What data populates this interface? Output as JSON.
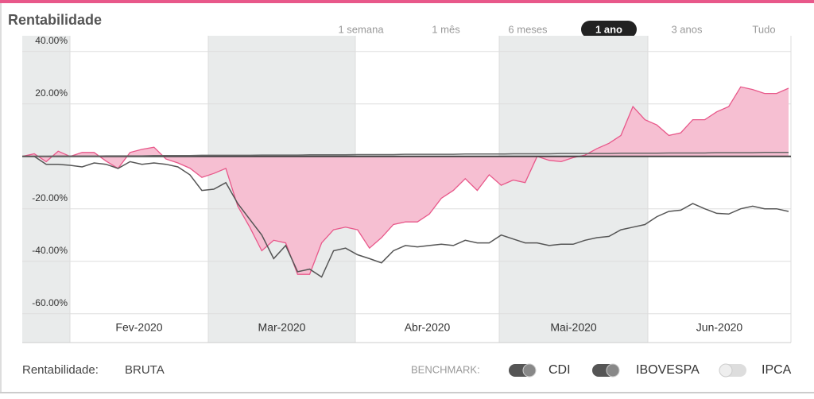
{
  "ui": {
    "periods": [
      "1 semana",
      "1 mês",
      "6 meses",
      "1 ano",
      "3 anos",
      "Tudo"
    ],
    "selected_period": 3,
    "footer": {
      "mode_label": "Rentabilidade:",
      "mode": "BRUTA",
      "benchmark_label": "BENCHMARK:",
      "hidden_benchmarks": [
        "IPCA"
      ]
    }
  },
  "chart_data": {
    "type": "line",
    "title": "Rentabilidade",
    "month_labels": [
      "Fev-2020",
      "Mar-2020",
      "Abr-2020",
      "Mai-2020",
      "Jun-2020"
    ],
    "ylim": [
      -71,
      46
    ],
    "yticks": [
      {
        "value": 40,
        "label": "40.00%"
      },
      {
        "value": 20,
        "label": "20.00%"
      },
      {
        "value": -20,
        "label": "-20.00%"
      },
      {
        "value": -40,
        "label": "-40.00%"
      },
      {
        "value": -60,
        "label": "-60.00%"
      }
    ],
    "grid": true,
    "series": [
      {
        "color": "#e8588a",
        "fill": "#f6bfd2",
        "area": true,
        "values": [
          0,
          1,
          -2,
          2,
          0,
          1.5,
          1.5,
          -1.8,
          -4.6,
          1.5,
          2.7,
          3.5,
          -1,
          -2.5,
          -4.5,
          -8,
          -6.5,
          -4.6,
          -19,
          -27,
          -36,
          -32,
          -33,
          -45,
          -45,
          -33,
          -28,
          -27,
          -28,
          -35,
          -31,
          -26,
          -25,
          -25,
          -22,
          -16,
          -13,
          -8.5,
          -13,
          -7,
          -11,
          -9,
          -10,
          0,
          -1.5,
          -2,
          -0.5,
          0.5,
          3,
          5,
          8,
          19,
          14,
          12,
          8,
          9,
          14,
          14,
          17,
          19,
          26.5,
          25.5,
          24,
          24,
          26
        ]
      },
      {
        "name": "CDI",
        "color": "#666666",
        "visible": true,
        "values": [
          0,
          0,
          0,
          0.1,
          0.1,
          0.1,
          0.1,
          0.2,
          0.2,
          0.2,
          0.2,
          0.3,
          0.3,
          0.3,
          0.3,
          0.4,
          0.4,
          0.4,
          0.4,
          0.4,
          0.5,
          0.5,
          0.5,
          0.5,
          0.6,
          0.6,
          0.6,
          0.6,
          0.7,
          0.7,
          0.7,
          0.7,
          0.8,
          0.8,
          0.8,
          0.8,
          0.8,
          0.9,
          0.9,
          0.9,
          0.9,
          1.0,
          1.0,
          1.0,
          1.0,
          1.1,
          1.1,
          1.1,
          1.1,
          1.1,
          1.2,
          1.2,
          1.2,
          1.2,
          1.3,
          1.3,
          1.3,
          1.3,
          1.4,
          1.4,
          1.4,
          1.4,
          1.5,
          1.5,
          1.5
        ]
      },
      {
        "name": "IBOVESPA",
        "color": "#555555",
        "visible": true,
        "values": [
          0,
          0,
          -3,
          -3,
          -3.4,
          -4,
          -2.5,
          -3,
          -4.6,
          -2,
          -3,
          -2.5,
          -3,
          -4,
          -7,
          -13,
          -12.5,
          -10,
          -18,
          -24,
          -30,
          -39,
          -34,
          -44,
          -43,
          -46,
          -36,
          -35,
          -37.5,
          -39,
          -40.6,
          -36,
          -34,
          -34.5,
          -34,
          -33.5,
          -34,
          -32,
          -33,
          -33,
          -30,
          -31.5,
          -33,
          -33,
          -34,
          -33.5,
          -33.5,
          -32,
          -31,
          -30.5,
          -28,
          -27,
          -26,
          -23,
          -21,
          -20.5,
          -18,
          -20,
          -21.7,
          -22,
          -20,
          -19,
          -20,
          -20,
          -21
        ]
      }
    ]
  }
}
